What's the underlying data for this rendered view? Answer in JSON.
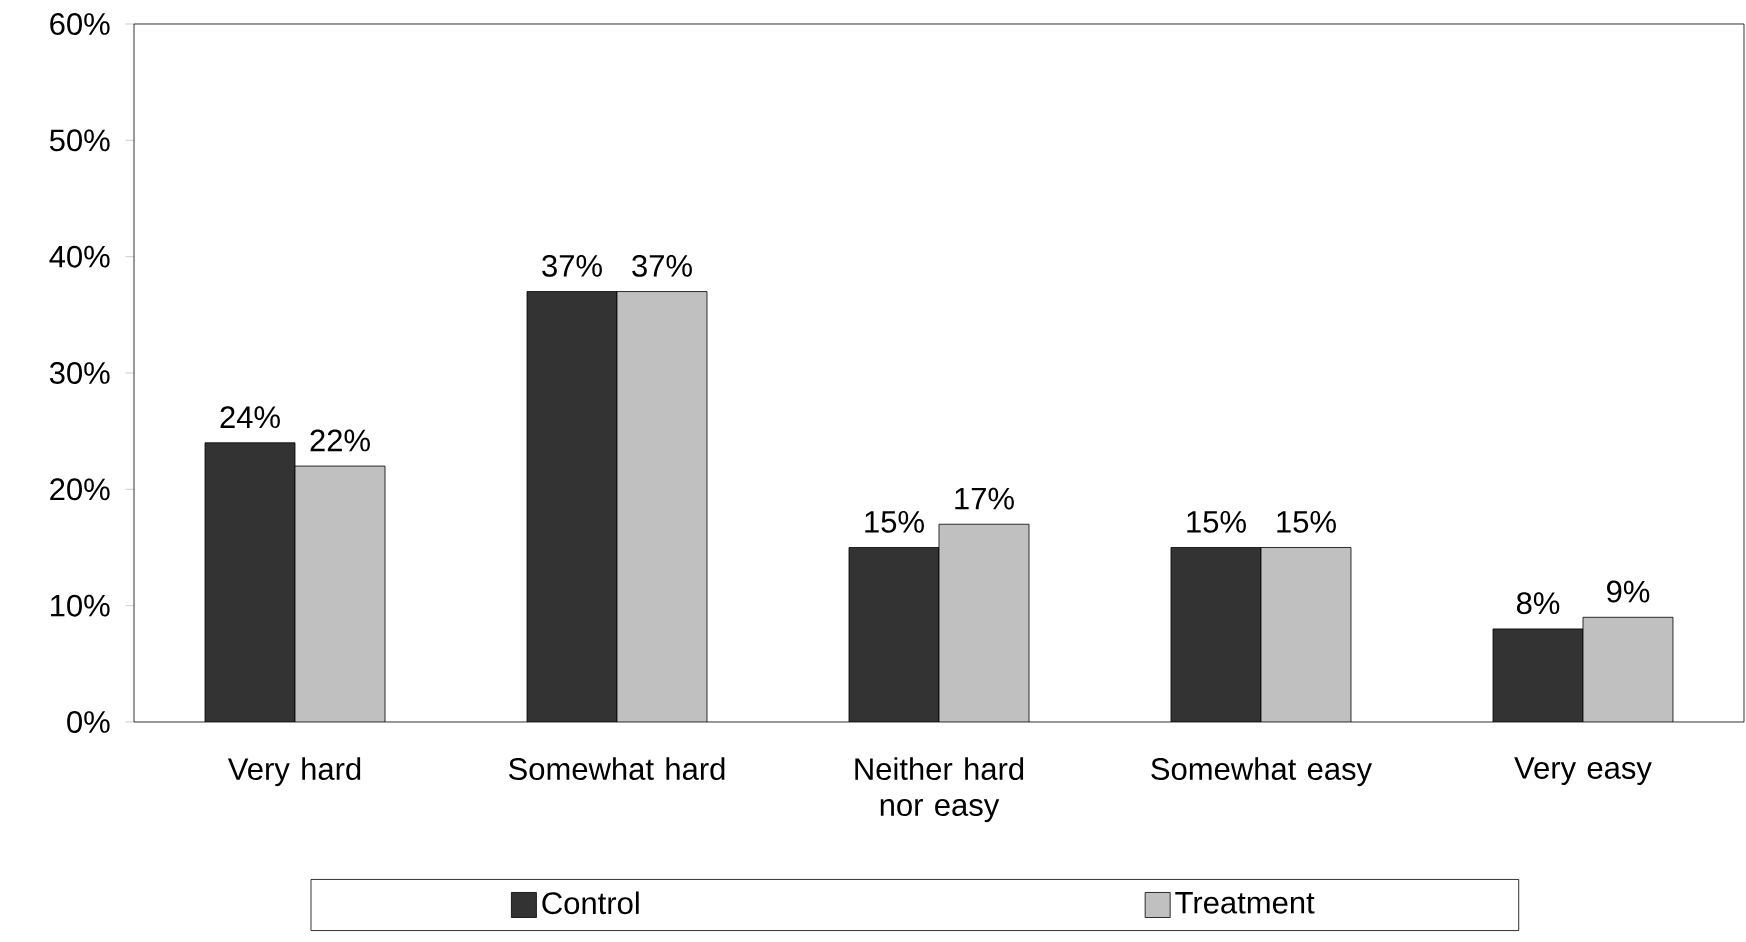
{
  "chart_data": {
    "type": "bar",
    "categories": [
      "Very hard",
      "Somewhat hard",
      "Neither hard nor easy",
      "Somewhat easy",
      "Very easy"
    ],
    "series": [
      {
        "name": "Control",
        "color": "#333333",
        "values": [
          24,
          37,
          15,
          15,
          8
        ],
        "value_labels": [
          "24%",
          "37%",
          "15%",
          "15%",
          "8%"
        ]
      },
      {
        "name": "Treatment",
        "color": "#c0c0c0",
        "values": [
          22,
          37,
          17,
          15,
          9
        ],
        "value_labels": [
          "22%",
          "37%",
          "17%",
          "15%",
          "9%"
        ]
      }
    ],
    "ylim": [
      0,
      60
    ],
    "yticks": [
      {
        "value": 0,
        "label": "0%"
      },
      {
        "value": 10,
        "label": "10%"
      },
      {
        "value": 20,
        "label": "20%"
      },
      {
        "value": 30,
        "label": "30%"
      },
      {
        "value": 40,
        "label": "40%"
      },
      {
        "value": 50,
        "label": "50%"
      },
      {
        "value": 60,
        "label": "60%"
      }
    ],
    "legend": "bottom",
    "grid": false
  }
}
